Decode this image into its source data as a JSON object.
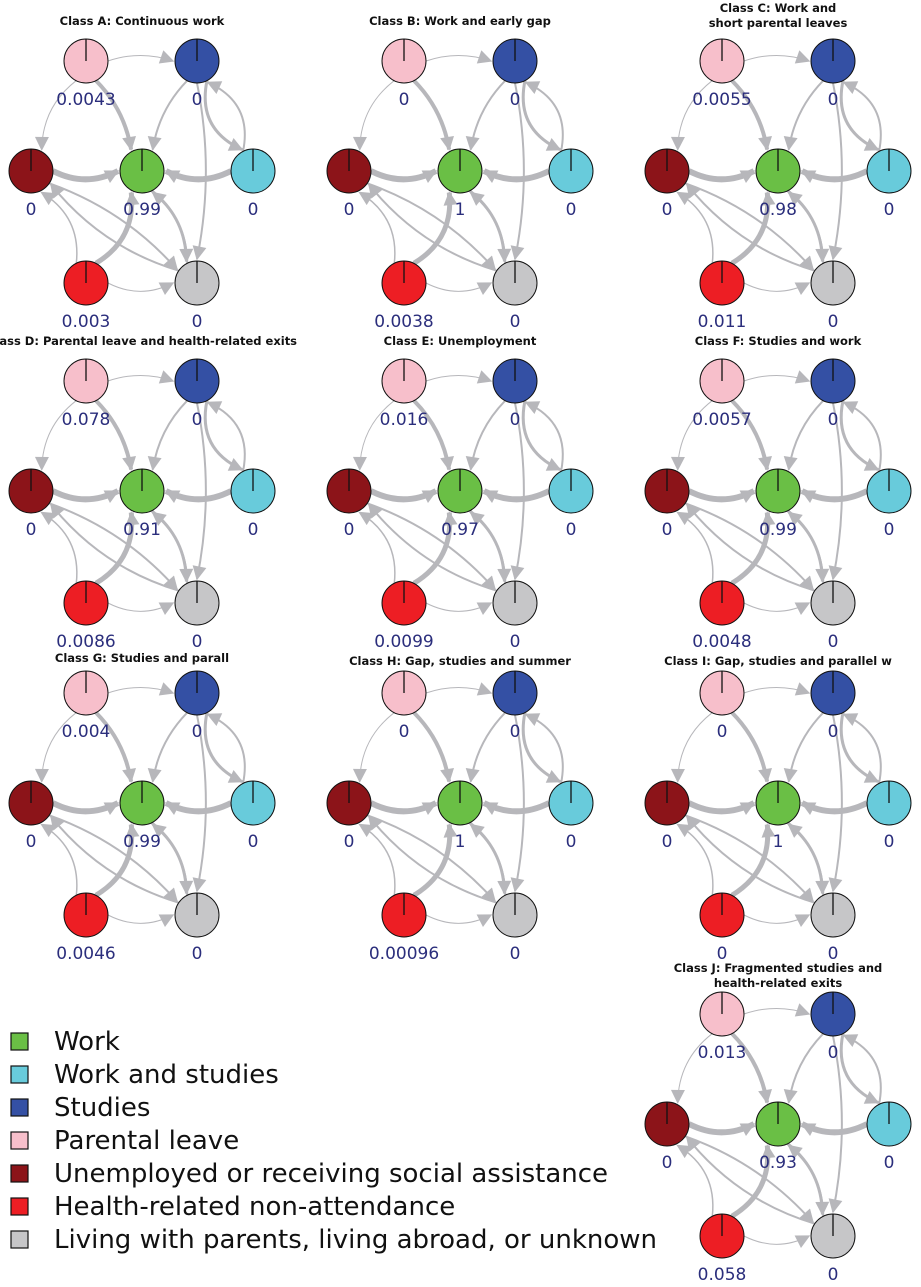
{
  "panels": [
    {
      "title": [
        "Class A: Continuous work"
      ],
      "nodes": [
        "0.0043",
        "0",
        "0",
        "0.99",
        "0",
        "0.003",
        "0"
      ]
    },
    {
      "title": [
        "Class B: Work and early gap"
      ],
      "nodes": [
        "0",
        "0",
        "0",
        "1",
        "0",
        "0.0038",
        "0"
      ]
    },
    {
      "title": [
        "Class C: Work and",
        "short parental leaves"
      ],
      "nodes": [
        "0.0055",
        "0",
        "0",
        "0.98",
        "0",
        "0.011",
        "0"
      ]
    },
    {
      "title": [
        "Class D: Parental leave and health-related exits"
      ],
      "nodes": [
        "0.078",
        "0",
        "0",
        "0.91",
        "0",
        "0.0086",
        "0"
      ]
    },
    {
      "title": [
        "Class E: Unemployment"
      ],
      "nodes": [
        "0.016",
        "0",
        "0",
        "0.97",
        "0",
        "0.0099",
        "0"
      ]
    },
    {
      "title": [
        "Class F: Studies and work"
      ],
      "nodes": [
        "0.0057",
        "0",
        "0",
        "0.99",
        "0",
        "0.0048",
        "0"
      ]
    },
    {
      "title": [
        "Class G: Studies and parall"
      ],
      "nodes": [
        "0.004",
        "0",
        "0",
        "0.99",
        "0",
        "0.0046",
        "0"
      ]
    },
    {
      "title": [
        "Class H: Gap, studies and summer"
      ],
      "nodes": [
        "0",
        "0",
        "0",
        "1",
        "0",
        "0.00096",
        "0"
      ]
    },
    {
      "title": [
        "Class I: Gap, studies and parallel w"
      ],
      "nodes": [
        "0",
        "0",
        "0",
        "1",
        "0",
        "0",
        "0"
      ]
    },
    {
      "title": [
        "Class J: Fragmented studies and",
        "health-related exits"
      ],
      "nodes": [
        "0.013",
        "0",
        "0",
        "0.93",
        "0",
        "0.058",
        "0"
      ]
    }
  ],
  "legend": [
    {
      "label": "Work",
      "color": "#6abf45"
    },
    {
      "label": "Work and studies",
      "color": "#68cbdb"
    },
    {
      "label": "Studies",
      "color": "#3450a4"
    },
    {
      "label": "Parental leave",
      "color": "#f7bfcb"
    },
    {
      "label": "Unemployed or receiving social assistance",
      "color": "#8c1419"
    },
    {
      "label": "Health-related non-attendance",
      "color": "#ed1e24"
    },
    {
      "label": "Living with parents, living abroad, or unknown",
      "color": "#c6c6c8"
    }
  ]
}
